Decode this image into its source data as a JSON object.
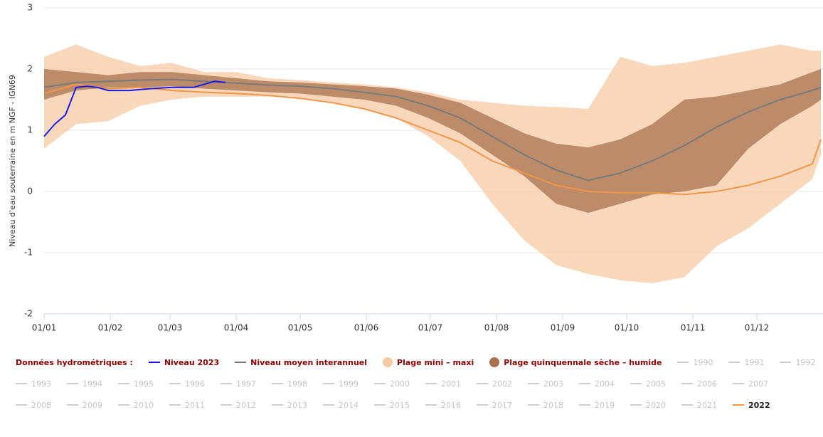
{
  "chart_data": {
    "type": "line",
    "y_label": "Niveau d'eau souterraine en m NGF - IGN69",
    "xlim": [
      0,
      365
    ],
    "xticks": [
      {
        "value": 0,
        "label": "01/01"
      },
      {
        "value": 31,
        "label": "01/02"
      },
      {
        "value": 59,
        "label": "01/03"
      },
      {
        "value": 90,
        "label": "01/04"
      },
      {
        "value": 120,
        "label": "01/05"
      },
      {
        "value": 151,
        "label": "01/06"
      },
      {
        "value": 181,
        "label": "01/07"
      },
      {
        "value": 212,
        "label": "01/08"
      },
      {
        "value": 243,
        "label": "01/09"
      },
      {
        "value": 273,
        "label": "01/10"
      },
      {
        "value": 304,
        "label": "01/11"
      },
      {
        "value": 334,
        "label": "01/12"
      }
    ],
    "ylim": [
      -2,
      3
    ],
    "yticks": [
      -2,
      -1,
      0,
      1,
      2,
      3
    ],
    "grid": true,
    "legend_title": "Données hydrométriques :",
    "series": [
      {
        "name": "Niveau 2023",
        "type": "line",
        "color": "#1a1ae6",
        "x": [
          0,
          5,
          10,
          15,
          20,
          25,
          30,
          40,
          50,
          60,
          70,
          80,
          85
        ],
        "values": [
          0.9,
          1.1,
          1.25,
          1.7,
          1.72,
          1.7,
          1.65,
          1.65,
          1.68,
          1.7,
          1.7,
          1.8,
          1.78
        ]
      },
      {
        "name": "Niveau moyen interannuel",
        "type": "line",
        "color": "#7a7a7a",
        "x": [
          0,
          15,
          30,
          45,
          60,
          75,
          90,
          105,
          120,
          135,
          150,
          165,
          180,
          195,
          210,
          225,
          240,
          255,
          270,
          285,
          300,
          315,
          330,
          345,
          360,
          364
        ],
        "values": [
          1.7,
          1.78,
          1.8,
          1.82,
          1.83,
          1.8,
          1.77,
          1.74,
          1.72,
          1.68,
          1.62,
          1.55,
          1.4,
          1.2,
          0.9,
          0.6,
          0.35,
          0.18,
          0.3,
          0.5,
          0.75,
          1.05,
          1.3,
          1.5,
          1.65,
          1.7
        ]
      },
      {
        "name": "Plage mini – maxi",
        "type": "band",
        "color": "#f5c9a4",
        "x": [
          0,
          15,
          30,
          45,
          60,
          75,
          90,
          105,
          120,
          135,
          150,
          165,
          180,
          195,
          210,
          225,
          240,
          255,
          270,
          285,
          300,
          315,
          330,
          345,
          360,
          364
        ],
        "high": [
          2.2,
          2.4,
          2.2,
          2.05,
          2.1,
          1.95,
          1.95,
          1.85,
          1.82,
          1.78,
          1.75,
          1.7,
          1.62,
          1.5,
          1.45,
          1.4,
          1.38,
          1.35,
          2.2,
          2.05,
          2.1,
          2.2,
          2.3,
          2.4,
          2.3,
          2.3
        ],
        "low": [
          0.7,
          1.1,
          1.15,
          1.4,
          1.5,
          1.55,
          1.55,
          1.55,
          1.52,
          1.45,
          1.35,
          1.2,
          0.9,
          0.5,
          -0.2,
          -0.8,
          -1.2,
          -1.35,
          -1.45,
          -1.5,
          -1.4,
          -0.9,
          -0.6,
          -0.2,
          0.2,
          0.6
        ]
      },
      {
        "name": "Plage quinquennale sèche – humide",
        "type": "band",
        "color": "#a8714f",
        "x": [
          0,
          15,
          30,
          45,
          60,
          75,
          90,
          105,
          120,
          135,
          150,
          165,
          180,
          195,
          210,
          225,
          240,
          255,
          270,
          285,
          300,
          315,
          330,
          345,
          360,
          364
        ],
        "high": [
          2.0,
          1.95,
          1.9,
          1.95,
          1.95,
          1.9,
          1.85,
          1.8,
          1.78,
          1.75,
          1.72,
          1.68,
          1.58,
          1.45,
          1.2,
          0.95,
          0.78,
          0.72,
          0.85,
          1.1,
          1.5,
          1.55,
          1.65,
          1.75,
          1.95,
          2.0
        ],
        "low": [
          1.5,
          1.65,
          1.7,
          1.7,
          1.72,
          1.68,
          1.65,
          1.62,
          1.6,
          1.55,
          1.5,
          1.4,
          1.2,
          0.95,
          0.6,
          0.25,
          -0.2,
          -0.35,
          -0.2,
          -0.05,
          0,
          0.1,
          0.7,
          1.1,
          1.4,
          1.5
        ]
      },
      {
        "name": "2022",
        "type": "line",
        "color": "#f0964b",
        "x": [
          0,
          15,
          30,
          45,
          60,
          75,
          90,
          105,
          120,
          135,
          150,
          165,
          180,
          195,
          210,
          225,
          240,
          255,
          270,
          285,
          300,
          315,
          330,
          345,
          360,
          364
        ],
        "values": [
          1.6,
          1.75,
          1.68,
          1.7,
          1.65,
          1.62,
          1.6,
          1.57,
          1.52,
          1.45,
          1.35,
          1.2,
          1.0,
          0.8,
          0.5,
          0.3,
          0.1,
          0.0,
          -0.02,
          -0.02,
          -0.05,
          0.0,
          0.1,
          0.25,
          0.45,
          0.85
        ]
      }
    ],
    "inactive_series": [
      "1990",
      "1991",
      "1992",
      "1993",
      "1994",
      "1995",
      "1996",
      "1997",
      "1998",
      "1999",
      "2000",
      "2001",
      "2002",
      "2003",
      "2004",
      "2005",
      "2006",
      "2007",
      "2008",
      "2009",
      "2010",
      "2011",
      "2012",
      "2013",
      "2014",
      "2015",
      "2016",
      "2017",
      "2018",
      "2019",
      "2020",
      "2021"
    ],
    "inactive_color": "#cfcfcf"
  }
}
